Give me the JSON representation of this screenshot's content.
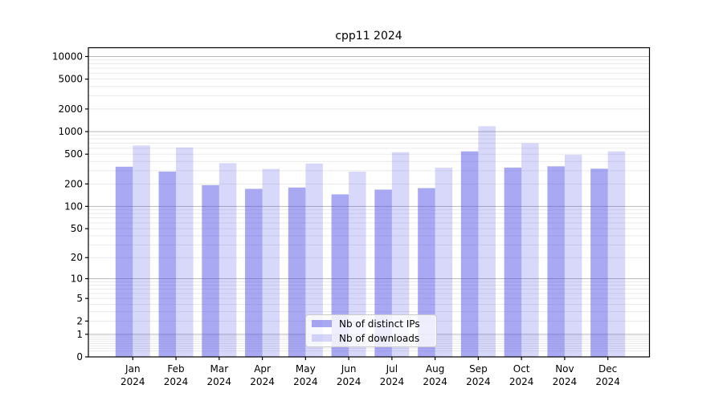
{
  "chart_data": {
    "type": "bar",
    "title": "cpp11 2024",
    "categories": [
      "Jan",
      "Feb",
      "Mar",
      "Apr",
      "May",
      "Jun",
      "Jul",
      "Aug",
      "Sep",
      "Oct",
      "Nov",
      "Dec"
    ],
    "year_label": "2024",
    "series": [
      {
        "name": "Nb of distinct IPs",
        "color": "rgba(70,70,230,0.47)",
        "values": [
          340,
          293,
          193,
          172,
          179,
          145,
          168,
          176,
          545,
          331,
          344,
          320
        ]
      },
      {
        "name": "Nb of downloads",
        "color": "rgba(70,70,230,0.21)",
        "values": [
          654,
          613,
          380,
          318,
          375,
          292,
          532,
          331,
          1180,
          699,
          491,
          545
        ]
      }
    ],
    "yscale": "log10(value+1)",
    "ylim": [
      0,
      13100
    ],
    "yticks": [
      0,
      1,
      2,
      5,
      10,
      20,
      50,
      100,
      200,
      500,
      1000,
      2000,
      5000,
      10000
    ],
    "grid": {
      "major_lines": [
        1,
        10,
        100,
        1000,
        10000
      ],
      "minor_decades": [
        0.1,
        1,
        10,
        100,
        1000
      ],
      "minor_factors": [
        2,
        3,
        4,
        5,
        6,
        7,
        8,
        9
      ],
      "major_color": "#b9b9b9",
      "minor_color": "#eaeaea"
    },
    "legend_position": "lower center",
    "axis_color": "#000000",
    "background_color": "#ffffff"
  }
}
